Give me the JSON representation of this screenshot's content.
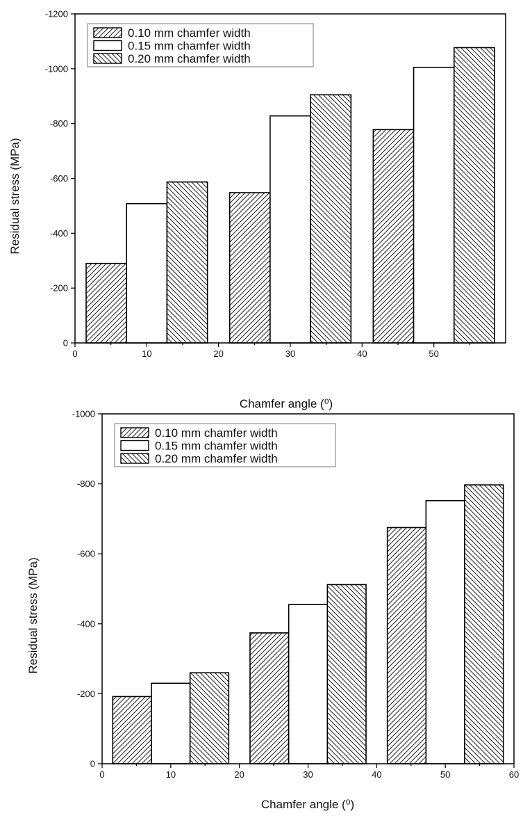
{
  "chart_data": [
    {
      "type": "bar",
      "xlabel": "Chamfer angle (⁰)",
      "ylabel": "Residual stress (MPa)",
      "xlim": [
        0,
        60
      ],
      "ylim": [
        0,
        -1200
      ],
      "xticks": [
        "0",
        "10",
        "20",
        "30",
        "40",
        "50"
      ],
      "yticks": [
        "0",
        "-200",
        "-400",
        "-600",
        "-800",
        "-1000",
        "-1200"
      ],
      "x": [
        10,
        30,
        50
      ],
      "legend_position": "top-left",
      "series": [
        {
          "name": "0.10 mm chamfer width",
          "pattern": "hatch-forward",
          "values": [
            -290,
            -548,
            -778
          ]
        },
        {
          "name": "0.15 mm chamfer width",
          "pattern": "none",
          "values": [
            -508,
            -828,
            -1005
          ]
        },
        {
          "name": "0.20 mm chamfer width",
          "pattern": "hatch-back",
          "values": [
            -587,
            -905,
            -1077
          ]
        }
      ]
    },
    {
      "type": "bar",
      "xlabel": "Chamfer angle (⁰)",
      "ylabel": "Residual stress (MPa)",
      "xlim": [
        0,
        60
      ],
      "ylim": [
        0,
        -1000
      ],
      "xticks": [
        "0",
        "10",
        "20",
        "30",
        "40",
        "50",
        "60"
      ],
      "yticks": [
        "0",
        "-200",
        "-400",
        "-600",
        "-800",
        "-1000"
      ],
      "x": [
        10,
        30,
        50
      ],
      "legend_position": "top-left",
      "series": [
        {
          "name": "0.10 mm chamfer width",
          "pattern": "hatch-forward",
          "values": [
            -192,
            -374,
            -675
          ]
        },
        {
          "name": "0.15 mm chamfer width",
          "pattern": "none",
          "values": [
            -230,
            -455,
            -752
          ]
        },
        {
          "name": "0.20 mm chamfer width",
          "pattern": "hatch-back",
          "values": [
            -260,
            -512,
            -797
          ]
        }
      ]
    }
  ]
}
